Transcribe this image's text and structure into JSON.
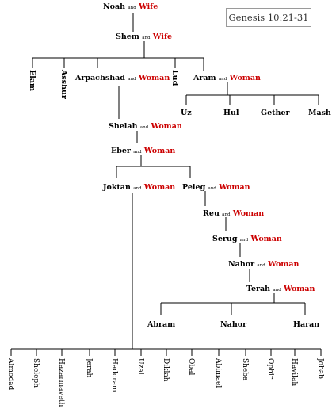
{
  "reference": "Genesis 10:21-31",
  "and_word": "and",
  "couples": {
    "noah": {
      "name": "Noah",
      "spouse": "Wife"
    },
    "shem": {
      "name": "Shem",
      "spouse": "Wife"
    },
    "arpachshad": {
      "name": "Arpachshad",
      "spouse": "Woman"
    },
    "aram": {
      "name": "Aram",
      "spouse": "Woman"
    },
    "shelah": {
      "name": "Shelah",
      "spouse": "Woman"
    },
    "eber": {
      "name": "Eber",
      "spouse": "Woman"
    },
    "joktan": {
      "name": "Joktan",
      "spouse": "Woman"
    },
    "peleg": {
      "name": "Peleg",
      "spouse": "Woman"
    },
    "reu": {
      "name": "Reu",
      "spouse": "Woman"
    },
    "serug": {
      "name": "Serug",
      "spouse": "Woman"
    },
    "nahor_elder": {
      "name": "Nahor",
      "spouse": "Woman"
    },
    "terah": {
      "name": "Terah",
      "spouse": "Woman"
    }
  },
  "shem_sons_vertical": {
    "elam": "Elam",
    "asshur": "Asshur",
    "lud": "Lud"
  },
  "aram_sons": [
    "Uz",
    "Hul",
    "Gether",
    "Mash"
  ],
  "terah_sons": [
    "Abram",
    "Nahor",
    "Haran"
  ],
  "joktan_sons": [
    "Almodad",
    "Sheleph",
    "Hazarmaveth",
    "Jerah",
    "Hadoram",
    "Uzal",
    "Diklah",
    "Obal",
    "Abimael",
    "Sheba",
    "Ophir",
    "Havilah",
    "Jobab"
  ]
}
